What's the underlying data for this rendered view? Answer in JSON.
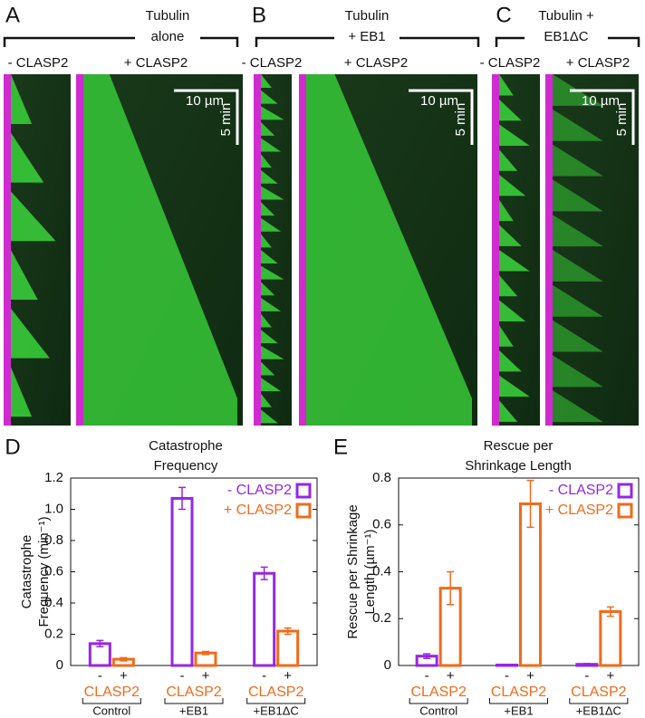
{
  "kymographs": [
    {
      "panel": "A",
      "title": [
        "Tubulin",
        "alone"
      ],
      "left_label": "- CLASP2",
      "right_label": "+ CLASP2",
      "scale_x": "10 µm",
      "scale_y": "5 min"
    },
    {
      "panel": "B",
      "title": [
        "Tubulin",
        "+ EB1"
      ],
      "left_label": "- CLASP2",
      "right_label": "+ CLASP2",
      "scale_x": "10 µm",
      "scale_y": "5 min"
    },
    {
      "panel": "C",
      "title": [
        "Tubulin +",
        "EB1ΔC"
      ],
      "left_label": "- CLASP2",
      "right_label": "+ CLASP2",
      "scale_x": "10 µm",
      "scale_y": "5 min"
    }
  ],
  "chart_data": [
    {
      "type": "bar",
      "panel": "D",
      "title": [
        "Catastrophe",
        "Frequency"
      ],
      "y_label": [
        "Catastrophe",
        "Frequency (min⁻¹)"
      ],
      "categories": [
        "Control",
        "+EB1",
        "+EB1ΔC"
      ],
      "group_sublabels": [
        "-",
        "+"
      ],
      "group_label": "CLASP2",
      "ylim": [
        0,
        1.2
      ],
      "yticks": [
        0,
        0.2,
        0.4,
        0.6,
        0.8,
        {
          "value": 1,
          "label": "1.0"
        },
        1.2
      ],
      "legend": "upper right",
      "series": [
        {
          "name": "- CLASP2",
          "color": "#9327e8",
          "values": [
            0.14,
            1.07,
            0.59
          ],
          "errors": [
            0.02,
            0.07,
            0.04
          ]
        },
        {
          "name": "+ CLASP2",
          "color": "#f26a1b",
          "values": [
            0.04,
            0.08,
            0.22
          ],
          "errors": [
            0.01,
            0.01,
            0.02
          ]
        }
      ]
    },
    {
      "type": "bar",
      "panel": "E",
      "title": [
        "Rescue per",
        "Shrinkage Length"
      ],
      "y_label": [
        "Rescue per Shrinkage",
        "Length (µm⁻¹)"
      ],
      "categories": [
        "Control",
        "+EB1",
        "+EB1ΔC"
      ],
      "group_sublabels": [
        "-",
        "+"
      ],
      "group_label": "CLASP2",
      "ylim": [
        0,
        0.8
      ],
      "yticks": [
        0,
        0.2,
        0.4,
        0.6,
        0.8
      ],
      "legend": "upper right",
      "series": [
        {
          "name": "- CLASP2",
          "color": "#9327e8",
          "values": [
            0.04,
            0.002,
            0.005
          ],
          "errors": [
            0.01,
            0.002,
            0.003
          ]
        },
        {
          "name": "+ CLASP2",
          "color": "#f26a1b",
          "values": [
            0.33,
            0.69,
            0.23
          ],
          "errors": [
            0.07,
            0.1,
            0.02
          ]
        }
      ]
    }
  ]
}
